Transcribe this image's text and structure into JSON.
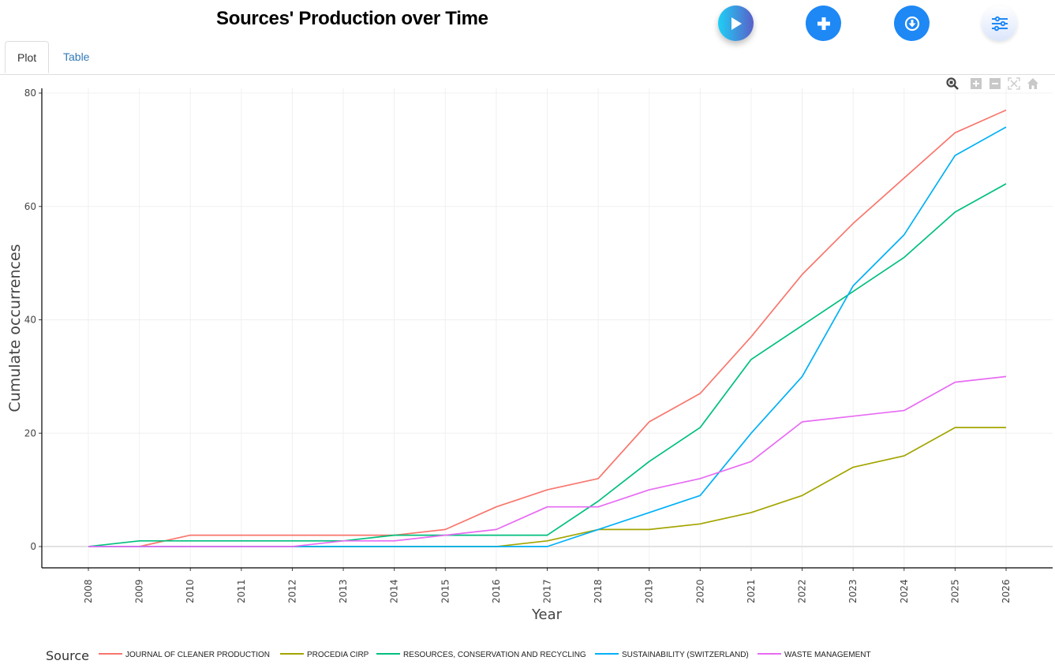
{
  "header": {
    "title": "Sources' Production over Time",
    "buttons": [
      {
        "name": "play",
        "icon": "play-icon"
      },
      {
        "name": "add",
        "icon": "plus-icon"
      },
      {
        "name": "download",
        "icon": "download-icon"
      },
      {
        "name": "settings",
        "icon": "sliders-icon"
      }
    ]
  },
  "tabs": [
    {
      "label": "Plot",
      "active": true
    },
    {
      "label": "Table",
      "active": false
    }
  ],
  "modebar": [
    "zoom-icon",
    "zoom-in-icon",
    "zoom-out-icon",
    "autoscale-icon",
    "reset-axes-icon"
  ],
  "chart_data": {
    "type": "line",
    "title": "",
    "xlabel": "Year",
    "ylabel": "Cumulate occurrences",
    "x": [
      "2008",
      "2009",
      "2010",
      "2011",
      "2012",
      "2013",
      "2014",
      "2015",
      "2016",
      "2017",
      "2018",
      "2019",
      "2020",
      "2021",
      "2022",
      "2023",
      "2024",
      "2025",
      "2026"
    ],
    "ylim": [
      -4,
      80
    ],
    "yticks": [
      0,
      20,
      40,
      60,
      80
    ],
    "grid": true,
    "legend": {
      "title": "Source",
      "position": "bottom"
    },
    "series": [
      {
        "name": "JOURNAL OF CLEANER PRODUCTION",
        "color": "#F8766D",
        "values": [
          0,
          0,
          2,
          2,
          2,
          2,
          2,
          3,
          7,
          10,
          12,
          22,
          27,
          37,
          48,
          57,
          65,
          73,
          77
        ]
      },
      {
        "name": "PROCEDIA CIRP",
        "color": "#A3A500",
        "values": [
          0,
          0,
          0,
          0,
          0,
          0,
          0,
          0,
          0,
          1,
          3,
          3,
          4,
          6,
          9,
          14,
          16,
          21,
          21
        ]
      },
      {
        "name": "RESOURCES, CONSERVATION AND RECYCLING",
        "color": "#00BF7D",
        "values": [
          0,
          1,
          1,
          1,
          1,
          1,
          2,
          2,
          2,
          2,
          8,
          15,
          21,
          33,
          39,
          45,
          51,
          59,
          64
        ]
      },
      {
        "name": "SUSTAINABILITY (SWITZERLAND)",
        "color": "#00B0F6",
        "values": [
          0,
          0,
          0,
          0,
          0,
          0,
          0,
          0,
          0,
          0,
          3,
          6,
          9,
          20,
          30,
          46,
          55,
          69,
          74
        ]
      },
      {
        "name": "WASTE MANAGEMENT",
        "color": "#E76BF3",
        "values": [
          0,
          0,
          0,
          0,
          0,
          1,
          1,
          2,
          3,
          7,
          7,
          10,
          12,
          15,
          22,
          23,
          24,
          29,
          30
        ]
      }
    ]
  }
}
